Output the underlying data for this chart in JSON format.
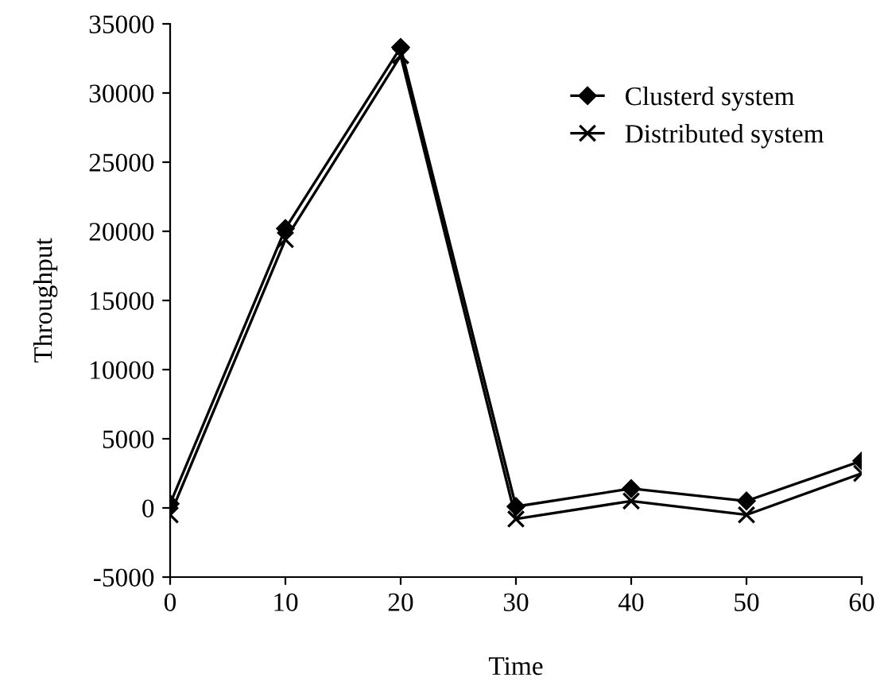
{
  "chart_data": {
    "type": "line",
    "xlabel": "Time",
    "ylabel": "Throughput",
    "x": [
      0,
      10,
      20,
      30,
      40,
      50,
      60
    ],
    "series": [
      {
        "name": "Clusterd system",
        "color": "#000000",
        "marker": "diamond",
        "values": [
          300,
          20200,
          33300,
          100,
          1400,
          500,
          3400
        ]
      },
      {
        "name": "Distributed system",
        "color": "#000000",
        "marker": "cross",
        "values": [
          -500,
          19400,
          32700,
          -800,
          500,
          -500,
          2500
        ]
      }
    ],
    "xlim": [
      0,
      60
    ],
    "xticks": [
      0,
      10,
      20,
      30,
      40,
      50,
      60
    ],
    "ylim": [
      -5000,
      35000
    ],
    "yticks": [
      -5000,
      0,
      5000,
      10000,
      15000,
      20000,
      25000,
      30000,
      35000
    ],
    "grid": false,
    "legend": "top right",
    "line_style": "solid"
  }
}
